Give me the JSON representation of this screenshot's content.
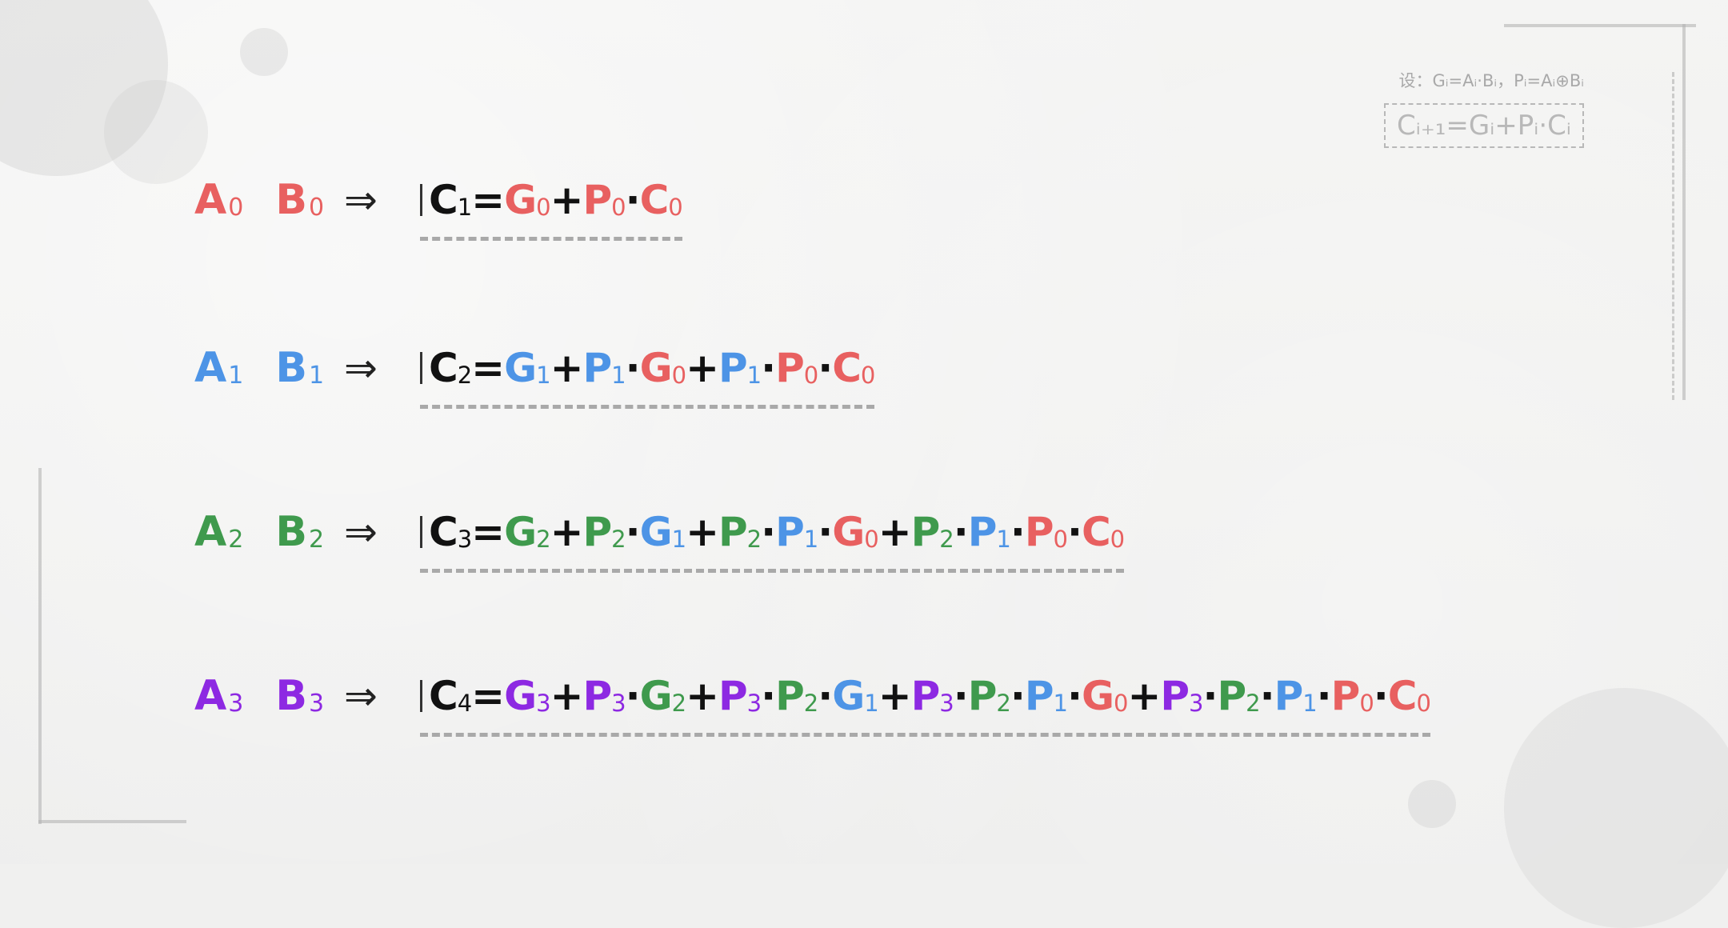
{
  "arrow": "⇒",
  "legend": {
    "note": "设：Gᵢ=Aᵢ·Bᵢ，Pᵢ=Aᵢ⊕Bᵢ",
    "rule": "Cᵢ₊₁=Gᵢ+Pᵢ·Cᵢ"
  },
  "rows": [
    {
      "a": "A",
      "a_sub": "0",
      "b": "B",
      "b_sub": "0",
      "color": "#e86060",
      "formula": [
        {
          "t": "C",
          "s": "1",
          "c": "black"
        },
        {
          "t": "=",
          "c": "black"
        },
        {
          "t": "G",
          "s": "0",
          "c": "red"
        },
        {
          "t": "+",
          "c": "black"
        },
        {
          "t": "P",
          "s": "0",
          "c": "red"
        },
        {
          "t": "·",
          "c": "black"
        },
        {
          "t": "C",
          "s": "0",
          "c": "red"
        }
      ]
    },
    {
      "a": "A",
      "a_sub": "1",
      "b": "B",
      "b_sub": "1",
      "color": "#4d94e6",
      "formula": [
        {
          "t": "C",
          "s": "2",
          "c": "black"
        },
        {
          "t": "=",
          "c": "black"
        },
        {
          "t": "G",
          "s": "1",
          "c": "blue"
        },
        {
          "t": "+",
          "c": "black"
        },
        {
          "t": "P",
          "s": "1",
          "c": "blue"
        },
        {
          "t": "·",
          "c": "black"
        },
        {
          "t": "G",
          "s": "0",
          "c": "red"
        },
        {
          "t": "+",
          "c": "black"
        },
        {
          "t": "P",
          "s": "1",
          "c": "blue"
        },
        {
          "t": "·",
          "c": "black"
        },
        {
          "t": "P",
          "s": "0",
          "c": "red"
        },
        {
          "t": "·",
          "c": "black"
        },
        {
          "t": "C",
          "s": "0",
          "c": "red"
        }
      ]
    },
    {
      "a": "A",
      "a_sub": "2",
      "b": "B",
      "b_sub": "2",
      "color": "#3f9a4d",
      "formula": [
        {
          "t": "C",
          "s": "3",
          "c": "black"
        },
        {
          "t": "=",
          "c": "black"
        },
        {
          "t": "G",
          "s": "2",
          "c": "green"
        },
        {
          "t": "+",
          "c": "black"
        },
        {
          "t": "P",
          "s": "2",
          "c": "green"
        },
        {
          "t": "·",
          "c": "black"
        },
        {
          "t": "G",
          "s": "1",
          "c": "blue"
        },
        {
          "t": "+",
          "c": "black"
        },
        {
          "t": "P",
          "s": "2",
          "c": "green"
        },
        {
          "t": "·",
          "c": "black"
        },
        {
          "t": "P",
          "s": "1",
          "c": "blue"
        },
        {
          "t": "·",
          "c": "black"
        },
        {
          "t": "G",
          "s": "0",
          "c": "red"
        },
        {
          "t": "+",
          "c": "black"
        },
        {
          "t": "P",
          "s": "2",
          "c": "green"
        },
        {
          "t": "·",
          "c": "black"
        },
        {
          "t": "P",
          "s": "1",
          "c": "blue"
        },
        {
          "t": "·",
          "c": "black"
        },
        {
          "t": "P",
          "s": "0",
          "c": "red"
        },
        {
          "t": "·",
          "c": "black"
        },
        {
          "t": "C",
          "s": "0",
          "c": "red"
        }
      ]
    },
    {
      "a": "A",
      "a_sub": "3",
      "b": "B",
      "b_sub": "3",
      "color": "#8d29e2",
      "formula": [
        {
          "t": "C",
          "s": "4",
          "c": "black"
        },
        {
          "t": "=",
          "c": "black"
        },
        {
          "t": "G",
          "s": "3",
          "c": "purple"
        },
        {
          "t": "+",
          "c": "black"
        },
        {
          "t": "P",
          "s": "3",
          "c": "purple"
        },
        {
          "t": "·",
          "c": "black"
        },
        {
          "t": "G",
          "s": "2",
          "c": "green"
        },
        {
          "t": "+",
          "c": "black"
        },
        {
          "t": "P",
          "s": "3",
          "c": "purple"
        },
        {
          "t": "·",
          "c": "black"
        },
        {
          "t": "P",
          "s": "2",
          "c": "green"
        },
        {
          "t": "·",
          "c": "black"
        },
        {
          "t": "G",
          "s": "1",
          "c": "blue"
        },
        {
          "t": "+",
          "c": "black"
        },
        {
          "t": "P",
          "s": "3",
          "c": "purple"
        },
        {
          "t": "·",
          "c": "black"
        },
        {
          "t": "P",
          "s": "2",
          "c": "green"
        },
        {
          "t": "·",
          "c": "black"
        },
        {
          "t": "P",
          "s": "1",
          "c": "blue"
        },
        {
          "t": "·",
          "c": "black"
        },
        {
          "t": "G",
          "s": "0",
          "c": "red"
        },
        {
          "t": "+",
          "c": "black"
        },
        {
          "t": "P",
          "s": "3",
          "c": "purple"
        },
        {
          "t": "·",
          "c": "black"
        },
        {
          "t": "P",
          "s": "2",
          "c": "green"
        },
        {
          "t": "·",
          "c": "black"
        },
        {
          "t": "P",
          "s": "1",
          "c": "blue"
        },
        {
          "t": "·",
          "c": "black"
        },
        {
          "t": "P",
          "s": "0",
          "c": "red"
        },
        {
          "t": "·",
          "c": "black"
        },
        {
          "t": "C",
          "s": "0",
          "c": "red"
        }
      ]
    }
  ]
}
